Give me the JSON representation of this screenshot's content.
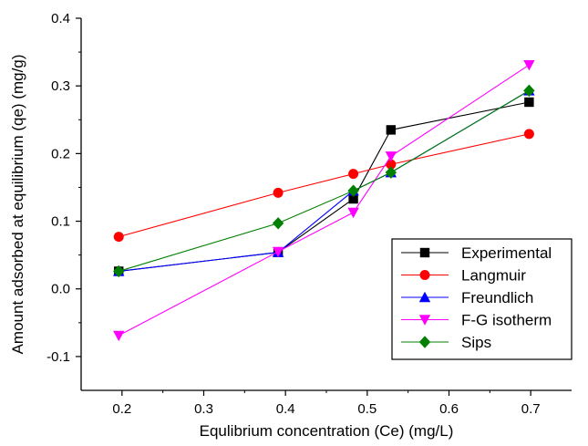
{
  "chart_data": {
    "type": "line",
    "xlabel": "Equlibrium concentration (Ce) (mg/L)",
    "ylabel": "Amount adsorbed at equilibrium (qe) (mg/g)",
    "xlim": [
      0.15,
      0.75
    ],
    "ylim": [
      -0.15,
      0.4
    ],
    "xticks": [
      0.2,
      0.3,
      0.4,
      0.5,
      0.6,
      0.7
    ],
    "xtick_labels": [
      "0.2",
      "0.3",
      "0.4",
      "0.5",
      "0.6",
      "0.7"
    ],
    "yticks": [
      -0.1,
      0.0,
      0.1,
      0.2,
      0.3,
      0.4
    ],
    "ytick_labels": [
      "-0.1",
      "0.0",
      "0.1",
      "0.2",
      "0.3",
      "0.4"
    ],
    "grid": false,
    "legend_position": "bottom-right",
    "x": [
      0.196,
      0.391,
      0.483,
      0.529,
      0.698
    ],
    "series": [
      {
        "name": "Experimental",
        "color": "#000000",
        "marker": "square",
        "values": [
          0.026,
          0.054,
          0.133,
          0.235,
          0.276
        ]
      },
      {
        "name": "Langmuir",
        "color": "#ff0000",
        "marker": "circle",
        "values": [
          0.077,
          0.142,
          0.17,
          0.184,
          0.229
        ]
      },
      {
        "name": "Freundlich",
        "color": "#0000ff",
        "marker": "triangle-up",
        "values": [
          0.026,
          0.054,
          0.145,
          0.172,
          0.293
        ]
      },
      {
        "name": "F-G isotherm",
        "color": "#ff00ff",
        "marker": "triangle-down",
        "values": [
          -0.069,
          0.055,
          0.113,
          0.196,
          0.331
        ]
      },
      {
        "name": "Sips",
        "color": "#008000",
        "marker": "diamond",
        "values": [
          0.026,
          0.097,
          0.145,
          0.172,
          0.293
        ]
      }
    ]
  }
}
